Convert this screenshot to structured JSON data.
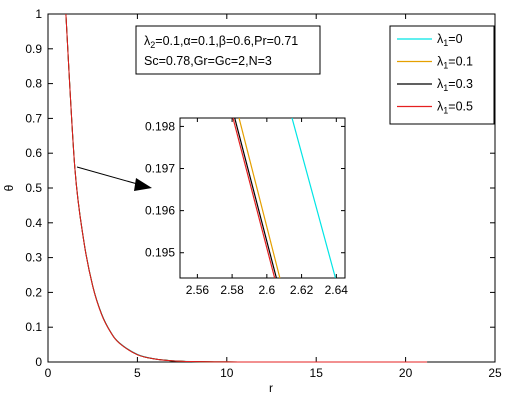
{
  "chart_data": [
    {
      "type": "line",
      "title": "",
      "xlabel": "r",
      "ylabel": "θ",
      "xlim": [
        0,
        25
      ],
      "ylim": [
        0,
        1
      ],
      "xticks": [
        "0",
        "5",
        "10",
        "15",
        "20",
        "25"
      ],
      "yticks": [
        "0",
        "0.1",
        "0.2",
        "0.3",
        "0.4",
        "0.5",
        "0.6",
        "0.7",
        "0.8",
        "0.9",
        "1"
      ],
      "grid": false,
      "legend_position": "top-right",
      "annotation_lines": [
        "λ₂=0.1,α=0.1,β=0.6,Pr=0.71",
        "Sc=0.78,Gr=Gc=2,N=3"
      ],
      "series": [
        {
          "name": "λ₁=0",
          "color": "#00e5e5",
          "x": [
            1,
            1.5,
            2,
            2.5,
            3,
            3.5,
            4,
            5,
            6,
            7,
            8,
            10,
            12,
            15,
            18,
            21.2
          ],
          "y": [
            1.0,
            0.56,
            0.35,
            0.22,
            0.138,
            0.087,
            0.055,
            0.022,
            0.0087,
            0.0035,
            0.0014,
            0.0002,
            0,
            0,
            0,
            0
          ]
        },
        {
          "name": "λ₁=0.1",
          "color": "#e5a000",
          "x": [
            1,
            1.5,
            2,
            2.5,
            3,
            3.5,
            4,
            5,
            6,
            7,
            8,
            10,
            12,
            15,
            18,
            21.2
          ],
          "y": [
            1.0,
            0.559,
            0.349,
            0.219,
            0.137,
            0.086,
            0.054,
            0.021,
            0.0085,
            0.0034,
            0.0013,
            0.0002,
            0,
            0,
            0,
            0
          ]
        },
        {
          "name": "λ₁=0.3",
          "color": "#000000",
          "x": [
            1,
            1.5,
            2,
            2.5,
            3,
            3.5,
            4,
            5,
            6,
            7,
            8,
            10,
            12,
            15,
            18,
            21.2
          ],
          "y": [
            1.0,
            0.558,
            0.348,
            0.218,
            0.137,
            0.086,
            0.054,
            0.021,
            0.0085,
            0.0034,
            0.0013,
            0.0002,
            0,
            0,
            0,
            0
          ]
        },
        {
          "name": "λ₁=0.5",
          "color": "#e52020",
          "x": [
            1,
            1.5,
            2,
            2.5,
            3,
            3.5,
            4,
            5,
            6,
            7,
            8,
            10,
            12,
            15,
            18,
            21.2
          ],
          "y": [
            1.0,
            0.558,
            0.348,
            0.218,
            0.136,
            0.086,
            0.054,
            0.021,
            0.0084,
            0.0034,
            0.0013,
            0.0002,
            0,
            0,
            0,
            0
          ]
        }
      ]
    },
    {
      "type": "line",
      "title": "",
      "inset": true,
      "xlim": [
        2.55,
        2.645
      ],
      "ylim": [
        0.1944,
        0.1982
      ],
      "xticks": [
        "2.56",
        "2.58",
        "2.6",
        "2.62",
        "2.64"
      ],
      "yticks": [
        "0.195",
        "0.196",
        "0.197",
        "0.198"
      ],
      "series": [
        {
          "name": "λ₁=0",
          "color": "#00e5e5",
          "x": [
            2.6145,
            2.6395
          ],
          "y": [
            0.1982,
            0.1944
          ]
        },
        {
          "name": "λ₁=0.1",
          "color": "#e5a000",
          "x": [
            2.584,
            2.6075
          ],
          "y": [
            0.1982,
            0.1944
          ]
        },
        {
          "name": "λ₁=0.3",
          "color": "#000000",
          "x": [
            2.5815,
            2.6055
          ],
          "y": [
            0.1982,
            0.1944
          ]
        },
        {
          "name": "λ₁=0.5",
          "color": "#e52020",
          "x": [
            2.5805,
            2.6045
          ],
          "y": [
            0.1982,
            0.1944
          ]
        }
      ]
    }
  ]
}
